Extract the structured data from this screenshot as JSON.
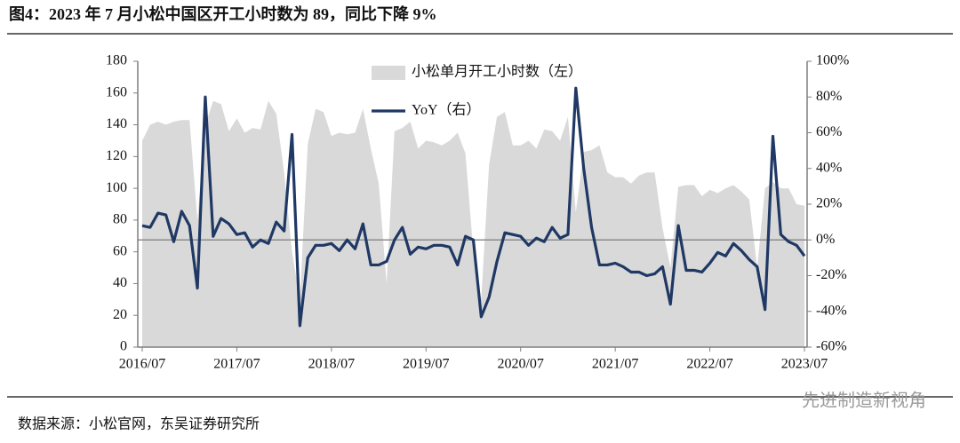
{
  "chart_data": {
    "type": "area-line",
    "title": "图4：2023 年 7 月小松中国区开工小时数为 89，同比下降 9%",
    "source": "数据来源：小松官网，东吴证券研究所",
    "watermark": "先进制造新视角",
    "categories": [
      "2016/07",
      null,
      null,
      null,
      null,
      null,
      null,
      null,
      null,
      null,
      null,
      null,
      "2017/07",
      null,
      null,
      null,
      null,
      null,
      null,
      null,
      null,
      null,
      null,
      null,
      "2018/07",
      null,
      null,
      null,
      null,
      null,
      null,
      null,
      null,
      null,
      null,
      null,
      "2019/07",
      null,
      null,
      null,
      null,
      null,
      null,
      null,
      null,
      null,
      null,
      null,
      "2020/07",
      null,
      null,
      null,
      null,
      null,
      null,
      null,
      null,
      null,
      null,
      null,
      "2021/07",
      null,
      null,
      null,
      null,
      null,
      null,
      null,
      null,
      null,
      null,
      null,
      "2022/07",
      null,
      null,
      null,
      null,
      null,
      null,
      null,
      null,
      null,
      null,
      null,
      "2023/07"
    ],
    "series": [
      {
        "name": "小松单月开工小时数（左）",
        "kind": "area",
        "color": "#d9d9d9",
        "axis": "y",
        "values": [
          130,
          140,
          142,
          140,
          142,
          143,
          143,
          80,
          140,
          155,
          153,
          136,
          144,
          135,
          138,
          137,
          155,
          147,
          110,
          60,
          30,
          128,
          150,
          148,
          133,
          135,
          134,
          135,
          150,
          125,
          103,
          40,
          136,
          138,
          142,
          125,
          130,
          129,
          127,
          130,
          135,
          122,
          60,
          30,
          115,
          145,
          148,
          127,
          127,
          130,
          125,
          137,
          136,
          130,
          145,
          85,
          123,
          124,
          127,
          110,
          107,
          107,
          103,
          108,
          110,
          110,
          75,
          50,
          101,
          102,
          102,
          95,
          99,
          97,
          100,
          102,
          98,
          93,
          50,
          100,
          104,
          100,
          100,
          90,
          89
        ]
      },
      {
        "name": "YoY（右）",
        "kind": "line",
        "color": "#1f3864",
        "axis": "y2",
        "values": [
          8,
          7,
          15,
          14,
          -1,
          16,
          8,
          -27,
          80,
          2,
          12,
          9,
          3,
          4,
          -4,
          0,
          -2,
          10,
          5,
          59,
          -48,
          -10,
          -3,
          -3,
          -2,
          -6,
          0,
          -5,
          9,
          -14,
          -14,
          -12,
          0,
          7,
          -8,
          -4,
          -5,
          -3,
          -3,
          -4,
          -14,
          2,
          0,
          -43,
          -32,
          -12,
          4,
          3,
          2,
          -3,
          1,
          -1,
          7,
          1,
          3,
          85,
          40,
          7,
          -14,
          -14,
          -13,
          -15,
          -18,
          -18,
          -20,
          -19,
          -15,
          -36,
          8,
          -17,
          -17,
          -18,
          -13,
          -7,
          -9,
          -2,
          -6,
          -11,
          -15,
          -39,
          58,
          3,
          -1,
          -3,
          -9
        ]
      }
    ],
    "ylim": [
      0,
      180
    ],
    "yticks": [
      0,
      20,
      40,
      60,
      80,
      100,
      120,
      140,
      160,
      180
    ],
    "y2lim": [
      -60,
      100
    ],
    "y2ticks": [
      {
        "value": -60,
        "label": "-60%"
      },
      {
        "value": -40,
        "label": "-40%"
      },
      {
        "value": -20,
        "label": "-20%"
      },
      {
        "value": 0,
        "label": "0%"
      },
      {
        "value": 20,
        "label": "20%"
      },
      {
        "value": 40,
        "label": "40%"
      },
      {
        "value": 60,
        "label": "60%"
      },
      {
        "value": 80,
        "label": "80%"
      },
      {
        "value": 100,
        "label": "100%"
      }
    ]
  }
}
